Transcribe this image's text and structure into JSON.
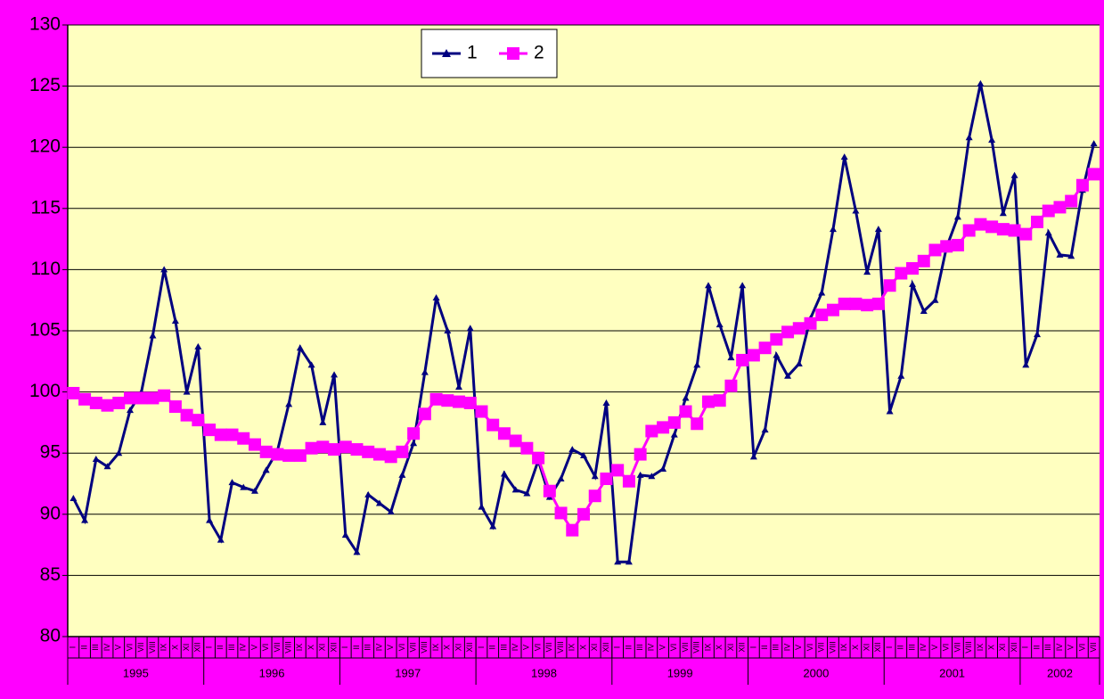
{
  "chart_data": {
    "type": "line",
    "ylim": [
      80,
      130
    ],
    "yticks": [
      80,
      85,
      90,
      95,
      100,
      105,
      110,
      115,
      120,
      125,
      130
    ],
    "grid": true,
    "legend": "top-left",
    "groups": [
      {
        "label": "1995",
        "categories": [
          "I",
          "II",
          "III",
          "IV",
          "V",
          "VI",
          "VII",
          "VIII",
          "IX",
          "X",
          "XI",
          "XII"
        ]
      },
      {
        "label": "1996",
        "categories": [
          "I",
          "II",
          "III",
          "IV",
          "V",
          "VI",
          "VII",
          "VIII",
          "IX",
          "X",
          "XI",
          "XII"
        ]
      },
      {
        "label": "1997",
        "categories": [
          "I",
          "II",
          "III",
          "IV",
          "V",
          "VI",
          "VII",
          "VIII",
          "IX",
          "X",
          "XI",
          "XII"
        ]
      },
      {
        "label": "1998",
        "categories": [
          "I",
          "II",
          "III",
          "IV",
          "V",
          "VI",
          "VII",
          "VIII",
          "IX",
          "X",
          "XI",
          "XII"
        ]
      },
      {
        "label": "1999",
        "categories": [
          "I",
          "II",
          "III",
          "IV",
          "V",
          "VI",
          "VII",
          "VIII",
          "IX",
          "X",
          "XI",
          "XII"
        ]
      },
      {
        "label": "2000",
        "categories": [
          "I",
          "II",
          "III",
          "IV",
          "V",
          "VI",
          "VII",
          "VIII",
          "IX",
          "X",
          "XI",
          "XII"
        ]
      },
      {
        "label": "2001",
        "categories": [
          "I",
          "II",
          "III",
          "IV",
          "V",
          "VI",
          "VII",
          "VIII",
          "IX",
          "X",
          "XI",
          "XII"
        ]
      },
      {
        "label": "2002",
        "categories": [
          "I",
          "II",
          "III",
          "IV",
          "V",
          "VI",
          "VII"
        ]
      }
    ],
    "series": [
      {
        "name": "1",
        "color": "#000080",
        "marker": "triangle",
        "values": [
          91.3,
          89.5,
          94.5,
          93.9,
          95.0,
          98.5,
          100.0,
          104.6,
          110.0,
          105.8,
          100.0,
          103.7,
          89.5,
          87.9,
          92.6,
          92.2,
          91.9,
          93.6,
          95.2,
          99.0,
          103.6,
          102.2,
          97.5,
          101.4,
          88.3,
          86.9,
          91.6,
          90.9,
          90.2,
          93.2,
          95.8,
          101.6,
          107.7,
          105.0,
          100.4,
          105.2,
          90.6,
          89.0,
          93.3,
          92.0,
          91.7,
          94.4,
          91.4,
          92.9,
          95.3,
          94.8,
          93.1,
          99.1,
          86.1,
          86.1,
          93.2,
          93.1,
          93.7,
          96.5,
          99.5,
          102.2,
          108.7,
          105.5,
          102.8,
          108.7,
          94.7,
          96.9,
          103.0,
          101.3,
          102.3,
          106.0,
          108.1,
          113.3,
          119.2,
          114.8,
          109.8,
          113.3,
          98.4,
          101.3,
          108.8,
          106.6,
          107.5,
          111.8,
          114.3,
          120.8,
          125.2,
          120.6,
          114.6,
          117.7,
          102.2,
          104.7,
          113.0,
          111.2,
          111.1,
          116.5,
          120.3
        ]
      },
      {
        "name": "2",
        "color": "#ff00ff",
        "marker": "square",
        "values": [
          99.9,
          99.4,
          99.1,
          98.9,
          99.1,
          99.5,
          99.5,
          99.5,
          99.7,
          98.8,
          98.1,
          97.7,
          96.9,
          96.5,
          96.5,
          96.2,
          95.7,
          95.1,
          94.9,
          94.8,
          94.8,
          95.4,
          95.5,
          95.3,
          95.5,
          95.3,
          95.1,
          94.9,
          94.7,
          95.1,
          96.6,
          98.2,
          99.4,
          99.3,
          99.2,
          99.1,
          98.4,
          97.3,
          96.6,
          96.0,
          95.4,
          94.6,
          91.9,
          90.1,
          88.7,
          90.0,
          91.5,
          92.9,
          93.6,
          92.7,
          94.9,
          96.8,
          97.1,
          97.5,
          98.4,
          97.4,
          99.2,
          99.3,
          100.5,
          102.6,
          103.0,
          103.6,
          104.3,
          104.9,
          105.2,
          105.6,
          106.3,
          106.7,
          107.2,
          107.2,
          107.1,
          107.2,
          108.7,
          109.7,
          110.1,
          110.7,
          111.6,
          111.9,
          112.0,
          113.2,
          113.7,
          113.5,
          113.3,
          113.2,
          112.9,
          113.9,
          114.8,
          115.1,
          115.6,
          116.9,
          117.8
        ]
      }
    ]
  }
}
